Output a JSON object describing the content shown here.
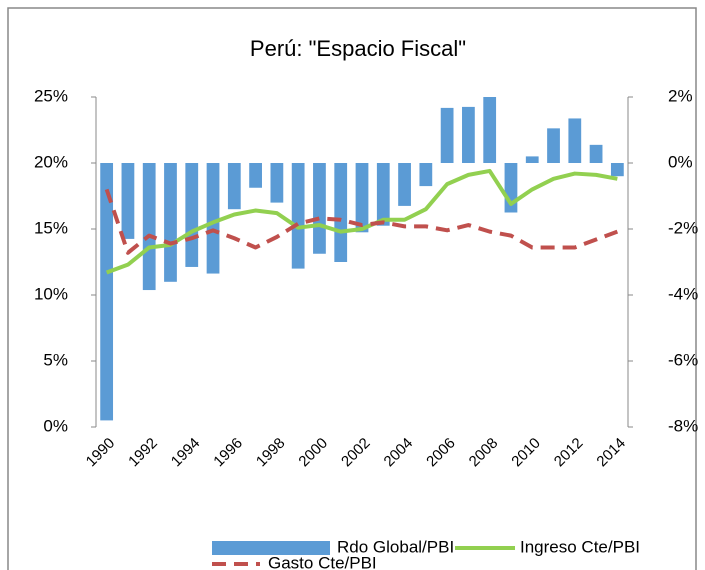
{
  "chart_data": {
    "type": "combo",
    "title": "Perú: \"Espacio Fiscal\"",
    "categories": [
      "1990",
      null,
      "1992",
      null,
      "1994",
      null,
      "1996",
      null,
      "1998",
      null,
      "2000",
      null,
      "2002",
      null,
      "2004",
      null,
      "2006",
      null,
      "2008",
      null,
      "2010",
      null,
      "2012",
      null,
      "2014"
    ],
    "ylim": [
      0,
      25
    ],
    "yticks": [
      {
        "value": 0,
        "label": "0%"
      },
      {
        "value": 5,
        "label": "5%"
      },
      {
        "value": 10,
        "label": "10%"
      },
      {
        "value": 15,
        "label": "15%"
      },
      {
        "value": 20,
        "label": "20%"
      },
      {
        "value": 25,
        "label": "25%"
      }
    ],
    "y2lim": [
      -8,
      2
    ],
    "y2ticks": [
      {
        "value": -8,
        "label": "-8%"
      },
      {
        "value": -6,
        "label": "-6%"
      },
      {
        "value": -4,
        "label": "-4%"
      },
      {
        "value": -2,
        "label": "-2%"
      },
      {
        "value": 0,
        "label": "0%"
      },
      {
        "value": 2,
        "label": "2%"
      }
    ],
    "series": [
      {
        "name": "Rdo Global/PBI",
        "type": "bar",
        "axis": "y2",
        "color": "#5b9bd5",
        "values": [
          -7.8,
          -2.3,
          -3.85,
          -3.6,
          -3.15,
          -3.35,
          -1.4,
          -0.75,
          -1.2,
          -3.2,
          -2.75,
          -3.0,
          -2.1,
          -1.9,
          -1.3,
          -0.7,
          1.67,
          1.7,
          2.0,
          -1.5,
          0.2,
          1.05,
          1.35,
          0.55,
          -0.4
        ]
      },
      {
        "name": "Ingreso Cte/PBI",
        "type": "line",
        "color": "#92d050",
        "dash": false,
        "values": [
          11.7,
          12.3,
          13.6,
          13.8,
          14.8,
          15.5,
          16.1,
          16.4,
          16.2,
          15.1,
          15.3,
          14.8,
          15.0,
          15.7,
          15.7,
          16.5,
          18.4,
          19.1,
          19.4,
          16.9,
          18.0,
          18.8,
          19.2,
          19.1,
          18.8
        ]
      },
      {
        "name": "Gasto Cte/PBI",
        "type": "line",
        "color": "#c0504d",
        "dash": true,
        "values": [
          18.0,
          13.2,
          14.5,
          13.9,
          14.3,
          14.9,
          14.3,
          13.6,
          14.4,
          15.4,
          15.8,
          15.7,
          15.3,
          15.5,
          15.2,
          15.2,
          14.9,
          15.3,
          14.8,
          14.5,
          13.6,
          13.6,
          13.6,
          14.2,
          14.8
        ]
      }
    ]
  }
}
